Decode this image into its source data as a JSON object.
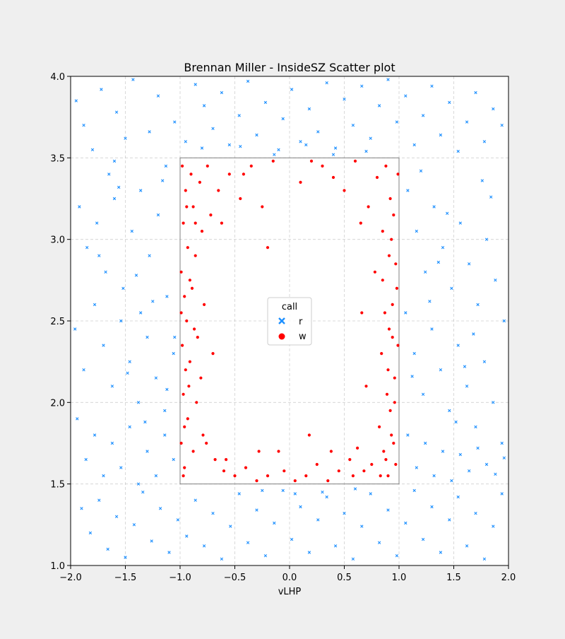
{
  "chart_data": {
    "type": "scatter",
    "title": "Brennan Miller - InsideSZ Scatter plot",
    "xlabel": "vLHP",
    "ylabel": "",
    "xlim": [
      -2.0,
      2.0
    ],
    "ylim": [
      1.0,
      4.0
    ],
    "x_ticks": [
      "−2.0",
      "−1.5",
      "−1.0",
      "−0.5",
      "0.0",
      "0.5",
      "1.0",
      "1.5",
      "2.0"
    ],
    "y_ticks": [
      "1.0",
      "1.5",
      "2.0",
      "2.5",
      "3.0",
      "3.5",
      "4.0"
    ],
    "grid": true,
    "legend": {
      "title": "call",
      "position": "center",
      "entries": [
        {
          "label": "r",
          "marker": "x",
          "color": "#1e90ff"
        },
        {
          "label": "w",
          "marker": "circle",
          "color": "#ff0000"
        }
      ]
    },
    "strike_zone": {
      "x": [
        -1.0,
        1.0
      ],
      "y": [
        1.5,
        3.5
      ]
    },
    "series": [
      {
        "name": "r",
        "color": "#1e90ff",
        "marker": "x",
        "points": [
          [
            -1.95,
            3.85
          ],
          [
            -1.88,
            3.7
          ],
          [
            -1.8,
            3.55
          ],
          [
            -1.72,
            3.92
          ],
          [
            -1.65,
            3.4
          ],
          [
            -1.58,
            3.78
          ],
          [
            -1.5,
            3.62
          ],
          [
            -1.43,
            3.98
          ],
          [
            -1.36,
            3.3
          ],
          [
            -1.28,
            3.66
          ],
          [
            -1.2,
            3.88
          ],
          [
            -1.13,
            3.45
          ],
          [
            -1.05,
            3.72
          ],
          [
            -0.95,
            3.6
          ],
          [
            -0.86,
            3.95
          ],
          [
            -0.78,
            3.82
          ],
          [
            -0.7,
            3.68
          ],
          [
            -0.62,
            3.9
          ],
          [
            -0.55,
            3.58
          ],
          [
            -0.46,
            3.76
          ],
          [
            -0.38,
            3.97
          ],
          [
            -0.3,
            3.64
          ],
          [
            -0.22,
            3.84
          ],
          [
            -0.14,
            3.52
          ],
          [
            -0.06,
            3.74
          ],
          [
            0.02,
            3.92
          ],
          [
            0.1,
            3.6
          ],
          [
            0.18,
            3.8
          ],
          [
            0.26,
            3.66
          ],
          [
            0.34,
            3.96
          ],
          [
            0.42,
            3.56
          ],
          [
            0.5,
            3.86
          ],
          [
            0.58,
            3.7
          ],
          [
            0.66,
            3.94
          ],
          [
            0.74,
            3.62
          ],
          [
            0.82,
            3.82
          ],
          [
            0.9,
            3.98
          ],
          [
            0.98,
            3.72
          ],
          [
            1.06,
            3.88
          ],
          [
            1.14,
            3.58
          ],
          [
            1.22,
            3.76
          ],
          [
            1.3,
            3.94
          ],
          [
            1.38,
            3.64
          ],
          [
            1.46,
            3.84
          ],
          [
            1.54,
            3.54
          ],
          [
            1.62,
            3.72
          ],
          [
            1.7,
            3.9
          ],
          [
            1.78,
            3.6
          ],
          [
            1.86,
            3.8
          ],
          [
            1.94,
            3.7
          ],
          [
            -1.92,
            3.2
          ],
          [
            -1.85,
            2.95
          ],
          [
            -1.76,
            3.1
          ],
          [
            -1.68,
            2.8
          ],
          [
            -1.6,
            3.25
          ],
          [
            -1.52,
            2.7
          ],
          [
            -1.44,
            3.05
          ],
          [
            -1.36,
            2.55
          ],
          [
            -1.28,
            2.9
          ],
          [
            -1.2,
            3.15
          ],
          [
            -1.12,
            2.65
          ],
          [
            -1.05,
            2.4
          ],
          [
            -1.96,
            2.45
          ],
          [
            -1.88,
            2.2
          ],
          [
            -1.78,
            2.6
          ],
          [
            -1.7,
            2.35
          ],
          [
            -1.62,
            2.1
          ],
          [
            -1.54,
            2.5
          ],
          [
            -1.46,
            2.25
          ],
          [
            -1.38,
            2.0
          ],
          [
            -1.3,
            2.4
          ],
          [
            -1.22,
            2.15
          ],
          [
            -1.14,
            1.95
          ],
          [
            -1.06,
            2.3
          ],
          [
            -1.94,
            1.9
          ],
          [
            -1.86,
            1.65
          ],
          [
            -1.78,
            1.8
          ],
          [
            -1.7,
            1.55
          ],
          [
            -1.62,
            1.75
          ],
          [
            -1.54,
            1.6
          ],
          [
            -1.46,
            1.85
          ],
          [
            -1.38,
            1.5
          ],
          [
            -1.3,
            1.7
          ],
          [
            -1.22,
            1.55
          ],
          [
            -1.14,
            1.8
          ],
          [
            -1.06,
            1.65
          ],
          [
            -1.9,
            1.35
          ],
          [
            -1.82,
            1.2
          ],
          [
            -1.74,
            1.4
          ],
          [
            -1.66,
            1.1
          ],
          [
            -1.58,
            1.3
          ],
          [
            -1.5,
            1.05
          ],
          [
            -1.42,
            1.25
          ],
          [
            -1.34,
            1.45
          ],
          [
            -1.26,
            1.15
          ],
          [
            -1.18,
            1.35
          ],
          [
            -1.1,
            1.08
          ],
          [
            -1.02,
            1.28
          ],
          [
            -0.94,
            1.18
          ],
          [
            -0.86,
            1.4
          ],
          [
            -0.78,
            1.12
          ],
          [
            -0.7,
            1.32
          ],
          [
            -0.62,
            1.04
          ],
          [
            -0.54,
            1.24
          ],
          [
            -0.46,
            1.44
          ],
          [
            -0.38,
            1.14
          ],
          [
            -0.3,
            1.34
          ],
          [
            -0.22,
            1.06
          ],
          [
            -0.14,
            1.26
          ],
          [
            -0.06,
            1.46
          ],
          [
            0.02,
            1.16
          ],
          [
            0.1,
            1.36
          ],
          [
            0.18,
            1.08
          ],
          [
            0.26,
            1.28
          ],
          [
            0.34,
            1.42
          ],
          [
            0.42,
            1.12
          ],
          [
            0.5,
            1.32
          ],
          [
            0.58,
            1.04
          ],
          [
            0.66,
            1.24
          ],
          [
            0.74,
            1.44
          ],
          [
            0.82,
            1.14
          ],
          [
            0.9,
            1.34
          ],
          [
            0.98,
            1.06
          ],
          [
            1.06,
            1.26
          ],
          [
            1.14,
            1.46
          ],
          [
            1.22,
            1.16
          ],
          [
            1.3,
            1.36
          ],
          [
            1.38,
            1.08
          ],
          [
            1.46,
            1.28
          ],
          [
            1.54,
            1.42
          ],
          [
            1.62,
            1.12
          ],
          [
            1.7,
            1.32
          ],
          [
            1.78,
            1.04
          ],
          [
            1.86,
            1.24
          ],
          [
            1.94,
            1.44
          ],
          [
            1.08,
            3.3
          ],
          [
            1.16,
            3.05
          ],
          [
            1.24,
            2.8
          ],
          [
            1.32,
            3.2
          ],
          [
            1.4,
            2.95
          ],
          [
            1.48,
            2.7
          ],
          [
            1.56,
            3.1
          ],
          [
            1.64,
            2.85
          ],
          [
            1.72,
            2.6
          ],
          [
            1.8,
            3.0
          ],
          [
            1.88,
            2.75
          ],
          [
            1.96,
            2.5
          ],
          [
            1.06,
            2.55
          ],
          [
            1.14,
            2.3
          ],
          [
            1.22,
            2.05
          ],
          [
            1.3,
            2.45
          ],
          [
            1.38,
            2.2
          ],
          [
            1.46,
            1.95
          ],
          [
            1.54,
            2.35
          ],
          [
            1.62,
            2.1
          ],
          [
            1.7,
            1.85
          ],
          [
            1.78,
            2.25
          ],
          [
            1.86,
            2.0
          ],
          [
            1.94,
            1.75
          ],
          [
            1.08,
            1.8
          ],
          [
            1.16,
            1.6
          ],
          [
            1.24,
            1.75
          ],
          [
            1.32,
            1.55
          ],
          [
            1.4,
            1.7
          ],
          [
            1.48,
            1.52
          ],
          [
            1.56,
            1.68
          ],
          [
            1.64,
            1.58
          ],
          [
            1.72,
            1.72
          ],
          [
            1.8,
            1.62
          ],
          [
            1.88,
            1.56
          ],
          [
            1.96,
            1.66
          ],
          [
            -1.4,
            2.78
          ],
          [
            -1.16,
            3.36
          ],
          [
            -1.6,
            3.48
          ],
          [
            -1.25,
            2.62
          ],
          [
            -1.48,
            2.18
          ],
          [
            -1.74,
            2.9
          ],
          [
            -1.12,
            2.08
          ],
          [
            -1.32,
            1.88
          ],
          [
            -1.56,
            3.32
          ],
          [
            1.2,
            3.42
          ],
          [
            1.44,
            3.16
          ],
          [
            1.68,
            2.42
          ],
          [
            1.28,
            2.62
          ],
          [
            1.52,
            1.88
          ],
          [
            1.76,
            3.36
          ],
          [
            1.12,
            2.16
          ],
          [
            1.36,
            2.86
          ],
          [
            1.6,
            2.22
          ],
          [
            1.84,
            3.26
          ],
          [
            -0.1,
            3.55
          ],
          [
            0.15,
            3.58
          ],
          [
            0.4,
            3.52
          ],
          [
            -0.45,
            3.57
          ],
          [
            0.7,
            3.54
          ],
          [
            -0.8,
            3.56
          ],
          [
            0.05,
            1.44
          ],
          [
            -0.25,
            1.46
          ],
          [
            0.3,
            1.45
          ],
          [
            0.6,
            1.47
          ]
        ]
      },
      {
        "name": "w",
        "color": "#ff0000",
        "marker": "circle",
        "points": [
          [
            -0.98,
            3.45
          ],
          [
            -0.95,
            3.3
          ],
          [
            -0.97,
            3.1
          ],
          [
            -0.93,
            2.95
          ],
          [
            -0.99,
            2.8
          ],
          [
            -0.96,
            2.65
          ],
          [
            -0.94,
            2.5
          ],
          [
            -0.98,
            2.35
          ],
          [
            -0.95,
            2.2
          ],
          [
            -0.97,
            2.05
          ],
          [
            -0.93,
            1.9
          ],
          [
            -0.99,
            1.75
          ],
          [
            -0.96,
            1.6
          ],
          [
            -0.9,
            3.4
          ],
          [
            -0.88,
            3.2
          ],
          [
            -0.86,
            2.9
          ],
          [
            -0.89,
            2.7
          ],
          [
            -0.87,
            2.45
          ],
          [
            -0.91,
            2.25
          ],
          [
            -0.85,
            2.0
          ],
          [
            -0.88,
            1.7
          ],
          [
            -0.82,
            3.35
          ],
          [
            -0.8,
            3.05
          ],
          [
            -0.78,
            2.6
          ],
          [
            -0.81,
            2.15
          ],
          [
            -0.79,
            1.8
          ],
          [
            -0.75,
            3.45
          ],
          [
            -0.72,
            3.15
          ],
          [
            -0.7,
            2.3
          ],
          [
            -0.68,
            1.65
          ],
          [
            -0.65,
            3.3
          ],
          [
            -0.62,
            3.1
          ],
          [
            -0.6,
            1.58
          ],
          [
            -0.55,
            3.4
          ],
          [
            -0.5,
            1.55
          ],
          [
            -0.45,
            3.25
          ],
          [
            -0.4,
            1.6
          ],
          [
            -0.35,
            3.45
          ],
          [
            -0.3,
            1.52
          ],
          [
            -0.25,
            3.2
          ],
          [
            -0.2,
            1.55
          ],
          [
            -0.2,
            2.95
          ],
          [
            -0.15,
            3.48
          ],
          [
            -0.1,
            1.7
          ],
          [
            -0.05,
            1.58
          ],
          [
            0.05,
            1.52
          ],
          [
            0.1,
            3.35
          ],
          [
            0.15,
            1.55
          ],
          [
            0.2,
            3.48
          ],
          [
            0.25,
            1.62
          ],
          [
            0.3,
            3.45
          ],
          [
            0.35,
            1.52
          ],
          [
            0.4,
            3.38
          ],
          [
            0.45,
            1.58
          ],
          [
            0.5,
            3.3
          ],
          [
            0.55,
            1.65
          ],
          [
            0.6,
            3.48
          ],
          [
            0.62,
            1.72
          ],
          [
            0.65,
            3.1
          ],
          [
            0.68,
            1.58
          ],
          [
            0.7,
            2.1
          ],
          [
            0.72,
            3.2
          ],
          [
            0.75,
            1.62
          ],
          [
            0.78,
            2.8
          ],
          [
            0.8,
            3.38
          ],
          [
            0.82,
            1.85
          ],
          [
            0.84,
            2.3
          ],
          [
            0.85,
            3.05
          ],
          [
            0.86,
            1.7
          ],
          [
            0.87,
            2.55
          ],
          [
            0.88,
            3.45
          ],
          [
            0.89,
            2.05
          ],
          [
            0.9,
            1.55
          ],
          [
            0.91,
            2.9
          ],
          [
            0.92,
            3.25
          ],
          [
            0.93,
            1.8
          ],
          [
            0.94,
            2.4
          ],
          [
            0.95,
            3.15
          ],
          [
            0.96,
            2.15
          ],
          [
            0.97,
            1.62
          ],
          [
            0.98,
            2.7
          ],
          [
            0.99,
            3.4
          ],
          [
            0.96,
            2.0
          ],
          [
            0.94,
            2.6
          ],
          [
            0.92,
            1.95
          ],
          [
            0.9,
            2.2
          ],
          [
            0.97,
            2.85
          ],
          [
            0.95,
            1.75
          ],
          [
            0.99,
            2.35
          ],
          [
            0.93,
            3.0
          ],
          [
            -0.97,
            1.55
          ],
          [
            -0.94,
            3.2
          ],
          [
            -0.99,
            2.55
          ],
          [
            -0.92,
            2.1
          ],
          [
            -0.96,
            1.85
          ],
          [
            -0.84,
            2.4
          ],
          [
            -0.76,
            1.75
          ],
          [
            -0.58,
            1.65
          ],
          [
            -0.42,
            3.4
          ],
          [
            -0.28,
            1.7
          ],
          [
            0.18,
            1.8
          ],
          [
            0.38,
            1.7
          ],
          [
            0.58,
            1.55
          ],
          [
            0.66,
            2.55
          ],
          [
            0.88,
            1.65
          ],
          [
            0.85,
            2.75
          ],
          [
            0.91,
            2.45
          ],
          [
            0.83,
            1.55
          ],
          [
            -0.91,
            2.75
          ],
          [
            -0.86,
            3.1
          ]
        ]
      }
    ]
  }
}
